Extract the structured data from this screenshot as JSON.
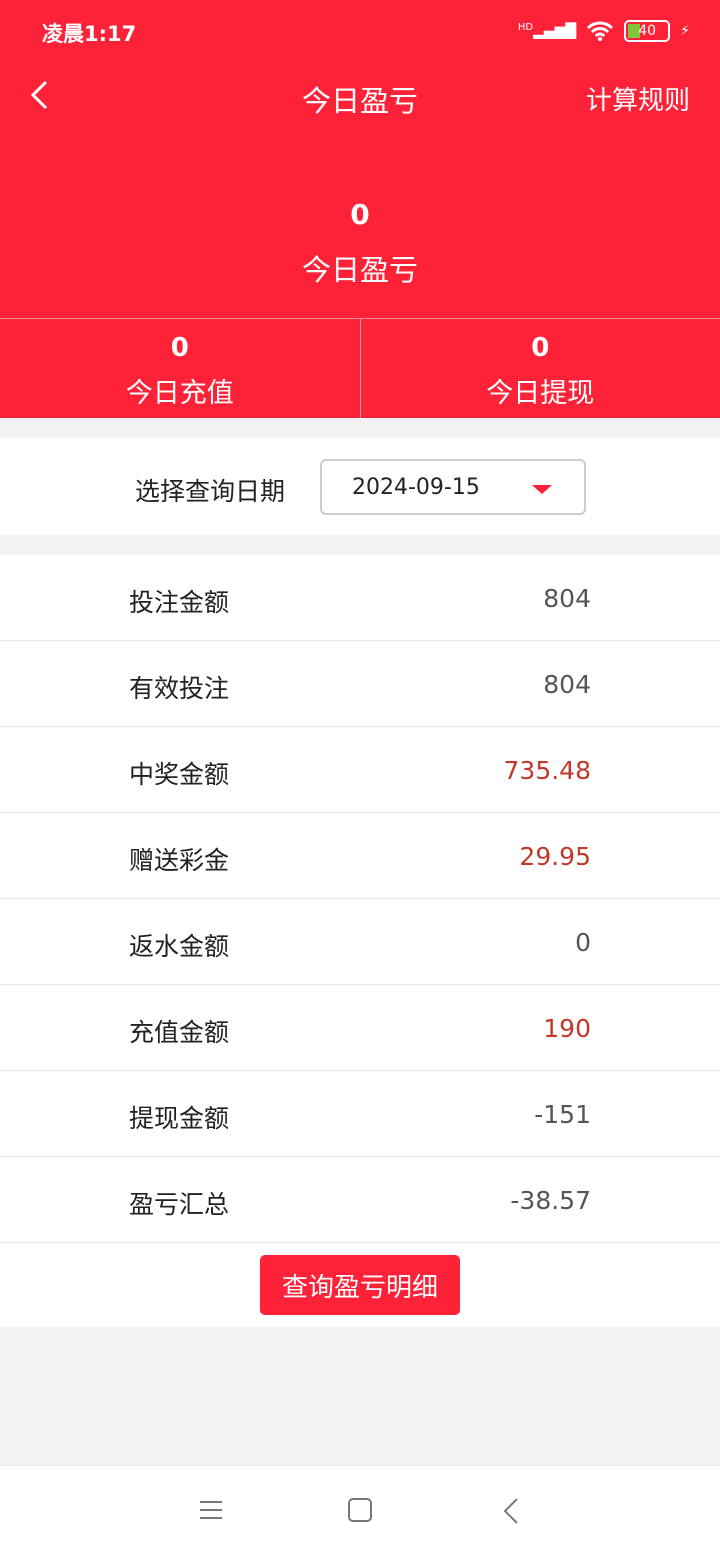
{
  "status_bar": {
    "time": "凌晨1:17",
    "network": "HD",
    "battery": "40"
  },
  "header": {
    "title": "今日盈亏",
    "rules_label": "计算规则"
  },
  "summary": {
    "profit_value": "0",
    "profit_label": "今日盈亏",
    "recharge_value": "0",
    "recharge_label": "今日充值",
    "withdraw_value": "0",
    "withdraw_label": "今日提现"
  },
  "date_filter": {
    "label": "选择查询日期",
    "value": "2024-09-15"
  },
  "rows": [
    {
      "label": "投注金额",
      "value": "804",
      "highlight": false
    },
    {
      "label": "有效投注",
      "value": "804",
      "highlight": false
    },
    {
      "label": "中奖金额",
      "value": "735.48",
      "highlight": true
    },
    {
      "label": "赠送彩金",
      "value": "29.95",
      "highlight": true
    },
    {
      "label": "返水金额",
      "value": "0",
      "highlight": false
    },
    {
      "label": "充值金额",
      "value": "190",
      "highlight": true
    },
    {
      "label": "提现金额",
      "value": "-151",
      "highlight": false
    },
    {
      "label": "盈亏汇总",
      "value": "-38.57",
      "highlight": false
    }
  ],
  "detail_button": "查询盈亏明细",
  "colors": {
    "brand": "#fe2239",
    "highlight_value": "#c0392b"
  }
}
